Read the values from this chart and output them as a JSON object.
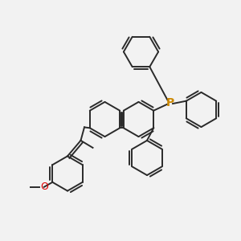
{
  "background_color": "#f2f2f2",
  "bond_color": "#2a2a2a",
  "phosphorus_color": "#cc8800",
  "oxygen_color": "#dd0000",
  "line_width": 1.4,
  "fig_width": 3.0,
  "fig_height": 3.0,
  "dpi": 100
}
